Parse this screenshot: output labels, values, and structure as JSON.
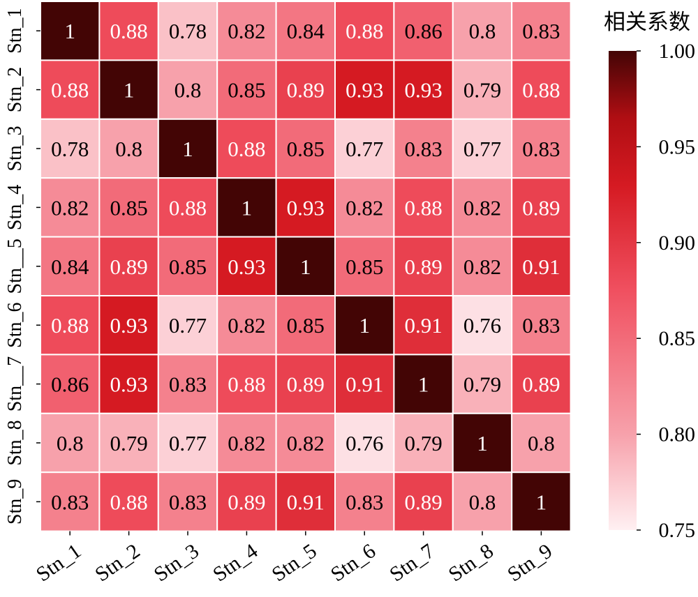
{
  "chart_data": {
    "type": "heatmap",
    "x_labels": [
      "Stn_1",
      "Stn_2",
      "Stn_3",
      "Stn_4",
      "Stn_5",
      "Stn_6",
      "Stn_7",
      "Stn_8",
      "Stn_9"
    ],
    "y_labels": [
      "Stn_1",
      "Stn_2",
      "Stn_3",
      "Stn_4",
      "Stn__5",
      "Stn_6",
      "Stn__7",
      "Stn_8",
      "Stn_9"
    ],
    "values": [
      [
        1,
        0.88,
        0.78,
        0.82,
        0.84,
        0.88,
        0.86,
        0.8,
        0.83
      ],
      [
        0.88,
        1,
        0.8,
        0.85,
        0.89,
        0.93,
        0.93,
        0.79,
        0.88
      ],
      [
        0.78,
        0.8,
        1,
        0.88,
        0.85,
        0.77,
        0.83,
        0.77,
        0.83
      ],
      [
        0.82,
        0.85,
        0.88,
        1,
        0.93,
        0.82,
        0.88,
        0.82,
        0.89
      ],
      [
        0.84,
        0.89,
        0.85,
        0.93,
        1,
        0.85,
        0.89,
        0.82,
        0.91
      ],
      [
        0.88,
        0.93,
        0.77,
        0.82,
        0.85,
        1,
        0.91,
        0.76,
        0.83
      ],
      [
        0.86,
        0.93,
        0.83,
        0.88,
        0.89,
        0.91,
        1,
        0.79,
        0.89
      ],
      [
        0.8,
        0.79,
        0.77,
        0.82,
        0.82,
        0.76,
        0.79,
        1,
        0.8
      ],
      [
        0.83,
        0.88,
        0.83,
        0.89,
        0.91,
        0.83,
        0.89,
        0.8,
        1
      ]
    ],
    "colorbar": {
      "title": "相关系数",
      "range": [
        0.75,
        1.0
      ],
      "ticks": [
        "0.75",
        "0.80",
        "0.85",
        "0.90",
        "0.95",
        "1.00"
      ]
    },
    "colors": {
      "low": "#fff0f2",
      "mid_low": "#f7a1ab",
      "mid": "#f05060",
      "mid_high": "#d51a22",
      "high_mid": "#b00e13",
      "high": "#430505"
    },
    "grid_lines": true,
    "legend_position": "right"
  }
}
